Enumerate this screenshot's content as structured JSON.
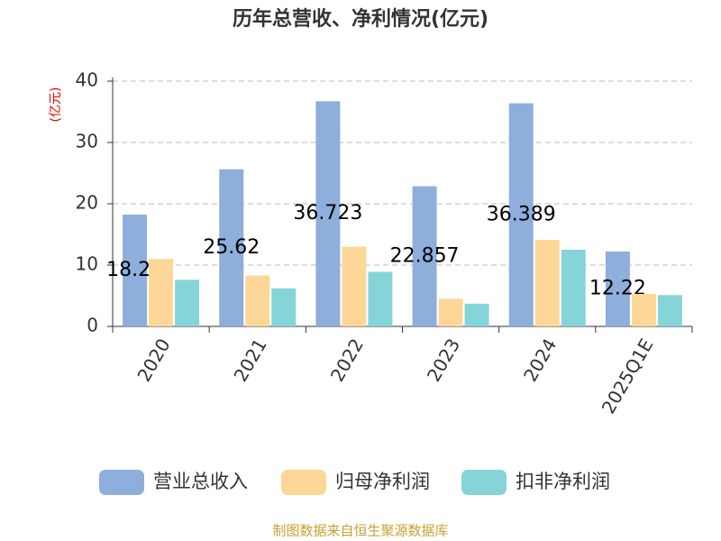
{
  "chart_data": {
    "type": "bar",
    "title": "历年总营收、净利情况(亿元)",
    "y_label": "(亿元)",
    "categories": [
      "2020",
      "2021",
      "2022",
      "2023",
      "2024",
      "2025Q1E"
    ],
    "series": [
      {
        "name": "营业总收入",
        "color": "#8eaedc",
        "values": [
          18.23,
          25.62,
          36.723,
          22.857,
          36.389,
          12.22
        ],
        "show_labels": true
      },
      {
        "name": "归母净利润",
        "color": "#fdd797",
        "values": [
          11.0,
          8.3,
          13.0,
          4.5,
          14.1,
          5.3
        ]
      },
      {
        "name": "扣非净利润",
        "color": "#85d4d8",
        "values": [
          7.6,
          6.2,
          8.9,
          3.7,
          12.5,
          5.1
        ]
      }
    ],
    "ylim": [
      0,
      40
    ],
    "yticks": [
      0,
      10,
      20,
      30,
      40
    ],
    "grid": true,
    "legend": "bottom",
    "source": "制图数据来自恒生聚源数据库"
  }
}
